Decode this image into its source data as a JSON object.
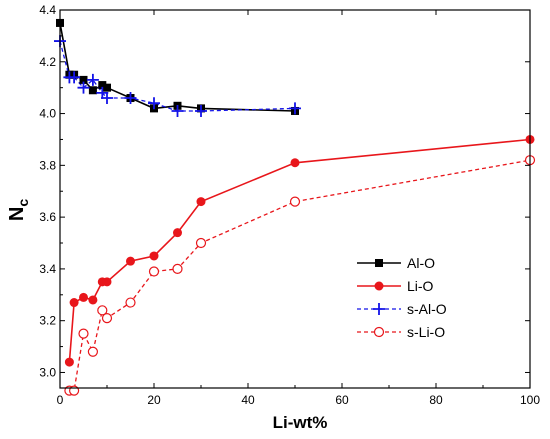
{
  "chart_data": {
    "type": "line",
    "xlabel": "Li-wt%",
    "ylabel_main": "N",
    "ylabel_sub": "c",
    "xlim": [
      0,
      100
    ],
    "ylim": [
      2.94,
      4.4
    ],
    "x_ticks": [
      0,
      20,
      40,
      60,
      80,
      100
    ],
    "x_tick_labels": [
      "0",
      "20",
      "40",
      "60",
      "80",
      "100"
    ],
    "y_ticks": [
      3.0,
      3.2,
      3.4,
      3.6,
      3.8,
      4.0,
      4.2,
      4.4
    ],
    "y_tick_labels": [
      "3.0",
      "3.2",
      "3.4",
      "3.6",
      "3.8",
      "4.0",
      "4.2",
      "4.4"
    ],
    "grid": false,
    "legend_position": "lower-right",
    "series": [
      {
        "name": "Al-O",
        "color": "#000000",
        "dash": "solid",
        "marker": "square-filled",
        "x": [
          0,
          2,
          3,
          5,
          7,
          9,
          10,
          15,
          20,
          25,
          30,
          50
        ],
        "y": [
          4.35,
          4.15,
          4.15,
          4.13,
          4.09,
          4.11,
          4.1,
          4.06,
          4.02,
          4.03,
          4.02,
          4.01
        ]
      },
      {
        "name": "Li-O",
        "color": "#e8161b",
        "dash": "solid",
        "marker": "circle-filled",
        "x": [
          2,
          3,
          5,
          7,
          9,
          10,
          15,
          20,
          25,
          30,
          50,
          100
        ],
        "y": [
          3.04,
          3.27,
          3.29,
          3.28,
          3.35,
          3.35,
          3.43,
          3.45,
          3.54,
          3.66,
          3.81,
          3.9
        ]
      },
      {
        "name": "s-Al-O",
        "color": "#1313e8",
        "dash": "dashed",
        "marker": "plus",
        "x": [
          0,
          2,
          3,
          5,
          7,
          9,
          10,
          15,
          20,
          25,
          30,
          50
        ],
        "y": [
          4.28,
          4.14,
          4.14,
          4.1,
          4.13,
          4.08,
          4.06,
          4.06,
          4.04,
          4.01,
          4.01,
          4.02
        ]
      },
      {
        "name": "s-Li-O",
        "color": "#e8161b",
        "dash": "dashed",
        "marker": "circle-open",
        "x": [
          2,
          3,
          5,
          7,
          9,
          10,
          15,
          20,
          25,
          30,
          50,
          100
        ],
        "y": [
          2.93,
          2.93,
          3.15,
          3.08,
          3.24,
          3.21,
          3.27,
          3.39,
          3.4,
          3.5,
          3.66,
          3.82
        ]
      }
    ]
  }
}
